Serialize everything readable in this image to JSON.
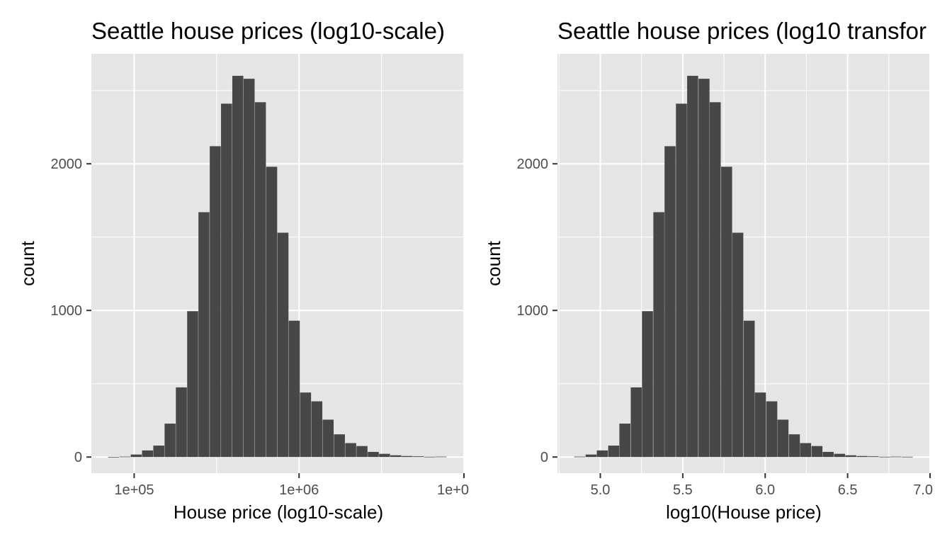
{
  "chart_data": [
    {
      "type": "bar",
      "title": "Seattle house prices (log10-scale)",
      "xlabel": "House price (log10-scale)",
      "ylabel": "count",
      "x_scale": "log10",
      "xlim": [
        55000,
        10000000
      ],
      "ylim": [
        -110,
        2750
      ],
      "x_ticks": [
        "1e+05",
        "1e+06",
        "1e+0"
      ],
      "y_ticks": [
        "0",
        "1000",
        "2000"
      ],
      "grid": true,
      "bin_width_log10": 0.0667,
      "bins": [
        {
          "x": 75000,
          "count": 0
        },
        {
          "x": 87900,
          "count": 3
        },
        {
          "x": 102900,
          "count": 17
        },
        {
          "x": 120500,
          "count": 45
        },
        {
          "x": 141000,
          "count": 78
        },
        {
          "x": 165100,
          "count": 228
        },
        {
          "x": 193300,
          "count": 475
        },
        {
          "x": 226300,
          "count": 995
        },
        {
          "x": 264900,
          "count": 1670
        },
        {
          "x": 310200,
          "count": 2120
        },
        {
          "x": 363100,
          "count": 2410
        },
        {
          "x": 425100,
          "count": 2600
        },
        {
          "x": 497700,
          "count": 2580
        },
        {
          "x": 582700,
          "count": 2420
        },
        {
          "x": 682200,
          "count": 1980
        },
        {
          "x": 798600,
          "count": 1530
        },
        {
          "x": 935000,
          "count": 930
        },
        {
          "x": 1094700,
          "count": 440
        },
        {
          "x": 1281500,
          "count": 380
        },
        {
          "x": 1500300,
          "count": 255
        },
        {
          "x": 1756500,
          "count": 155
        },
        {
          "x": 2056400,
          "count": 95
        },
        {
          "x": 2407600,
          "count": 75
        },
        {
          "x": 2818700,
          "count": 35
        },
        {
          "x": 3299900,
          "count": 22
        },
        {
          "x": 3863300,
          "count": 12
        },
        {
          "x": 4523000,
          "count": 7
        },
        {
          "x": 5295000,
          "count": 5
        },
        {
          "x": 6199000,
          "count": 2
        },
        {
          "x": 7258000,
          "count": 3
        }
      ]
    },
    {
      "type": "bar",
      "title": "Seattle house prices (log10 transfor",
      "xlabel": "log10(House price)",
      "ylabel": "count",
      "xlim": [
        4.74,
        7.0
      ],
      "ylim": [
        -110,
        2750
      ],
      "x_ticks": [
        "5.0",
        "5.5",
        "6.0",
        "6.5",
        "7.0"
      ],
      "y_ticks": [
        "0",
        "1000",
        "2000"
      ],
      "grid": true,
      "bin_width": 0.0667,
      "bins": [
        {
          "x": 4.875,
          "count": 3
        },
        {
          "x": 4.944,
          "count": 17
        },
        {
          "x": 5.012,
          "count": 45
        },
        {
          "x": 5.081,
          "count": 78
        },
        {
          "x": 5.149,
          "count": 228
        },
        {
          "x": 5.218,
          "count": 475
        },
        {
          "x": 5.286,
          "count": 995
        },
        {
          "x": 5.355,
          "count": 1670
        },
        {
          "x": 5.423,
          "count": 2120
        },
        {
          "x": 5.492,
          "count": 2410
        },
        {
          "x": 5.56,
          "count": 2600
        },
        {
          "x": 5.629,
          "count": 2580
        },
        {
          "x": 5.697,
          "count": 2420
        },
        {
          "x": 5.766,
          "count": 1980
        },
        {
          "x": 5.834,
          "count": 1530
        },
        {
          "x": 5.903,
          "count": 930
        },
        {
          "x": 5.971,
          "count": 440
        },
        {
          "x": 6.04,
          "count": 380
        },
        {
          "x": 6.108,
          "count": 255
        },
        {
          "x": 6.177,
          "count": 155
        },
        {
          "x": 6.245,
          "count": 95
        },
        {
          "x": 6.314,
          "count": 75
        },
        {
          "x": 6.382,
          "count": 35
        },
        {
          "x": 6.451,
          "count": 22
        },
        {
          "x": 6.519,
          "count": 12
        },
        {
          "x": 6.588,
          "count": 7
        },
        {
          "x": 6.656,
          "count": 5
        },
        {
          "x": 6.725,
          "count": 2
        },
        {
          "x": 6.793,
          "count": 3
        },
        {
          "x": 6.862,
          "count": 2
        }
      ]
    }
  ],
  "colors": {
    "panel_background": "#e5e5e5",
    "grid": "#ffffff",
    "bar_fill": "#474747",
    "tick_text": "#4d4d4d"
  }
}
